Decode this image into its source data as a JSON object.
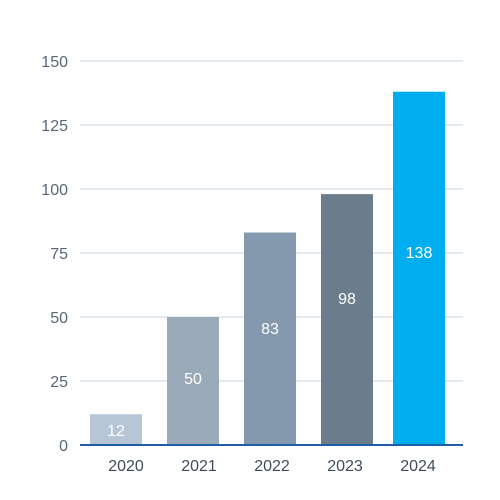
{
  "chart_data": {
    "type": "bar",
    "categories": [
      "2020",
      "2021",
      "2022",
      "2023",
      "2024"
    ],
    "values": [
      12,
      50,
      83,
      98,
      138
    ],
    "data_labels": [
      "12",
      "50",
      "83",
      "98",
      "138"
    ],
    "bar_colors": [
      "#b6c6d6",
      "#9aaab9",
      "#8499ae",
      "#6b7c8c",
      "#00adef"
    ],
    "title": "",
    "xlabel": "",
    "ylabel": "",
    "ylim": [
      0,
      150
    ],
    "yticks": [
      0,
      25,
      50,
      75,
      100,
      125,
      150
    ],
    "grid": true,
    "legend": "none"
  },
  "colors": {
    "gridline": "#c9d6e0",
    "baseline": "#1f5fa8",
    "tick_text": "#5a6778"
  }
}
